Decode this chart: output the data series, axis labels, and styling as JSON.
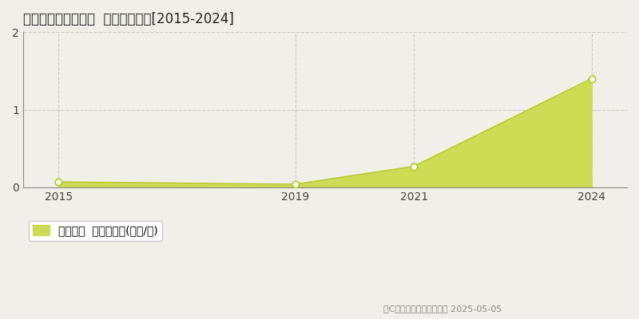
{
  "title": "多気郡多気町上出江  土地価格推移[2015-2024]",
  "years": [
    2015,
    2019,
    2021,
    2024
  ],
  "values": [
    0.07,
    0.04,
    0.27,
    1.4
  ],
  "xlim": [
    2014.4,
    2024.6
  ],
  "ylim": [
    0,
    2.0
  ],
  "yticks": [
    0,
    1,
    2
  ],
  "xticks": [
    2015,
    2019,
    2021,
    2024
  ],
  "fill_color": "#ccdd55",
  "line_color": "#bbcc33",
  "marker_color": "#ffffff",
  "marker_edge_color": "#aacc22",
  "grid_color": "#cccccc",
  "background_color": "#f0f0e8",
  "legend_label": "土地価格  平均坪単価(万円/坪)",
  "copyright_text": "（C）土地価格ドットコム 2025-05-05",
  "title_fontsize": 12,
  "axis_fontsize": 10,
  "legend_fontsize": 10
}
